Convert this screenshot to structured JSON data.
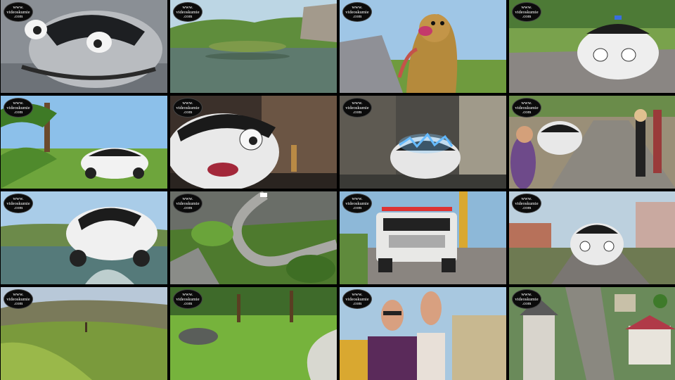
{
  "watermark": {
    "line1": "www.",
    "line2": "videoskumie",
    "line3": ".com"
  },
  "frames": [
    {
      "scene": "police-car-closeup"
    },
    {
      "scene": "lake-island"
    },
    {
      "scene": "weasel-character"
    },
    {
      "scene": "police-car-road"
    },
    {
      "scene": "police-car-field"
    },
    {
      "scene": "car-face-weasel-indoor"
    },
    {
      "scene": "electrified-car"
    },
    {
      "scene": "car-with-crowd"
    },
    {
      "scene": "car-jumping-water"
    },
    {
      "scene": "winding-road-aerial"
    },
    {
      "scene": "hummer-truck"
    },
    {
      "scene": "car-village-street"
    },
    {
      "scene": "grassy-hillside"
    },
    {
      "scene": "forest-path"
    },
    {
      "scene": "two-villains"
    },
    {
      "scene": "town-aerial"
    }
  ]
}
